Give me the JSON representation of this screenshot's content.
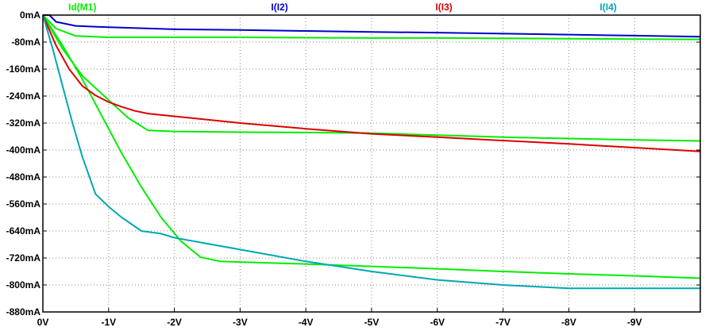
{
  "chart_data": {
    "type": "line",
    "title": "",
    "xlabel": "",
    "ylabel": "",
    "xlim": [
      0,
      -10
    ],
    "ylim": [
      -880,
      0
    ],
    "grid": true,
    "legend_position": "top",
    "x_ticks": [
      {
        "value": 0,
        "label": "0V"
      },
      {
        "value": -1,
        "label": "-1V"
      },
      {
        "value": -2,
        "label": "-2V"
      },
      {
        "value": -3,
        "label": "-3V"
      },
      {
        "value": -4,
        "label": "-4V"
      },
      {
        "value": -5,
        "label": "-5V"
      },
      {
        "value": -6,
        "label": "-6V"
      },
      {
        "value": -7,
        "label": "-7V"
      },
      {
        "value": -8,
        "label": "-8V"
      },
      {
        "value": -9,
        "label": "-9V"
      }
    ],
    "y_ticks": [
      {
        "value": 0,
        "label": "0mA"
      },
      {
        "value": -80,
        "label": "-80mA"
      },
      {
        "value": -160,
        "label": "-160mA"
      },
      {
        "value": -240,
        "label": "-240mA"
      },
      {
        "value": -320,
        "label": "-320mA"
      },
      {
        "value": -400,
        "label": "-400mA"
      },
      {
        "value": -480,
        "label": "-480mA"
      },
      {
        "value": -560,
        "label": "-560mA"
      },
      {
        "value": -640,
        "label": "-640mA"
      },
      {
        "value": -720,
        "label": "-720mA"
      },
      {
        "value": -800,
        "label": "-800mA"
      },
      {
        "value": -880,
        "label": "-880mA"
      }
    ],
    "series": [
      {
        "name": "Id(M1)",
        "color": "#00ee00",
        "legend_x": 0.6,
        "x": [
          0,
          -0.2,
          -0.5,
          -1,
          -1.5,
          -2,
          -3,
          -4,
          -5,
          -6,
          -7,
          -8,
          -9,
          -10
        ],
        "y": [
          0,
          -40,
          -62,
          -66,
          -66,
          -66,
          -66,
          -67,
          -68,
          -68,
          -69,
          -70,
          -71,
          -72
        ]
      },
      {
        "name": "",
        "color": "#00ee00",
        "x": [
          0,
          -0.3,
          -0.6,
          -1,
          -1.3,
          -1.6,
          -2,
          -3,
          -4,
          -5,
          -6,
          -7,
          -8,
          -9,
          -10
        ],
        "y": [
          0,
          -100,
          -180,
          -252,
          -305,
          -342,
          -345,
          -347,
          -348,
          -350,
          -356,
          -362,
          -366,
          -370,
          -373
        ]
      },
      {
        "name": "",
        "color": "#00ee00",
        "x": [
          0,
          -0.3,
          -0.6,
          -0.9,
          -1.2,
          -1.5,
          -1.8,
          -2.1,
          -2.4,
          -2.7,
          -3,
          -4,
          -5,
          -6,
          -7,
          -8,
          -9,
          -10
        ],
        "y": [
          0,
          -90,
          -190,
          -300,
          -410,
          -510,
          -600,
          -670,
          -718,
          -730,
          -732,
          -738,
          -745,
          -752,
          -760,
          -767,
          -773,
          -780
        ]
      },
      {
        "name": "I(I2)",
        "color": "#0000cc",
        "legend_x": 3.6,
        "x": [
          0,
          -0.1,
          -0.2,
          -0.5,
          -1,
          -2,
          -3,
          -4,
          -5,
          -6,
          -7,
          -8,
          -9,
          -10
        ],
        "y": [
          0,
          0,
          -20,
          -32,
          -36,
          -42,
          -44,
          -47,
          -50,
          -52,
          -55,
          -58,
          -61,
          -64
        ]
      },
      {
        "name": "I(I3)",
        "color": "#dd0000",
        "legend_x": 6.1,
        "x": [
          0,
          -0.2,
          -0.4,
          -0.6,
          -0.8,
          -1,
          -1.2,
          -1.4,
          -1.6,
          -2,
          -3,
          -4,
          -5,
          -6,
          -7,
          -8,
          -9,
          -10
        ],
        "y": [
          0,
          -90,
          -160,
          -210,
          -238,
          -258,
          -272,
          -284,
          -292,
          -300,
          -320,
          -337,
          -352,
          -362,
          -372,
          -382,
          -393,
          -404
        ]
      },
      {
        "name": "I(I4)",
        "color": "#00a8b0",
        "legend_x": 8.6,
        "x": [
          0,
          -0.15,
          -0.3,
          -0.45,
          -0.6,
          -0.8,
          -1,
          -1.2,
          -1.5,
          -1.8,
          -2,
          -3,
          -4,
          -5,
          -6,
          -7,
          -7.5,
          -8,
          -9,
          -10
        ],
        "y": [
          0,
          -100,
          -210,
          -320,
          -420,
          -530,
          -568,
          -600,
          -640,
          -648,
          -660,
          -695,
          -730,
          -760,
          -785,
          -800,
          -805,
          -810,
          -810,
          -810
        ]
      }
    ]
  }
}
